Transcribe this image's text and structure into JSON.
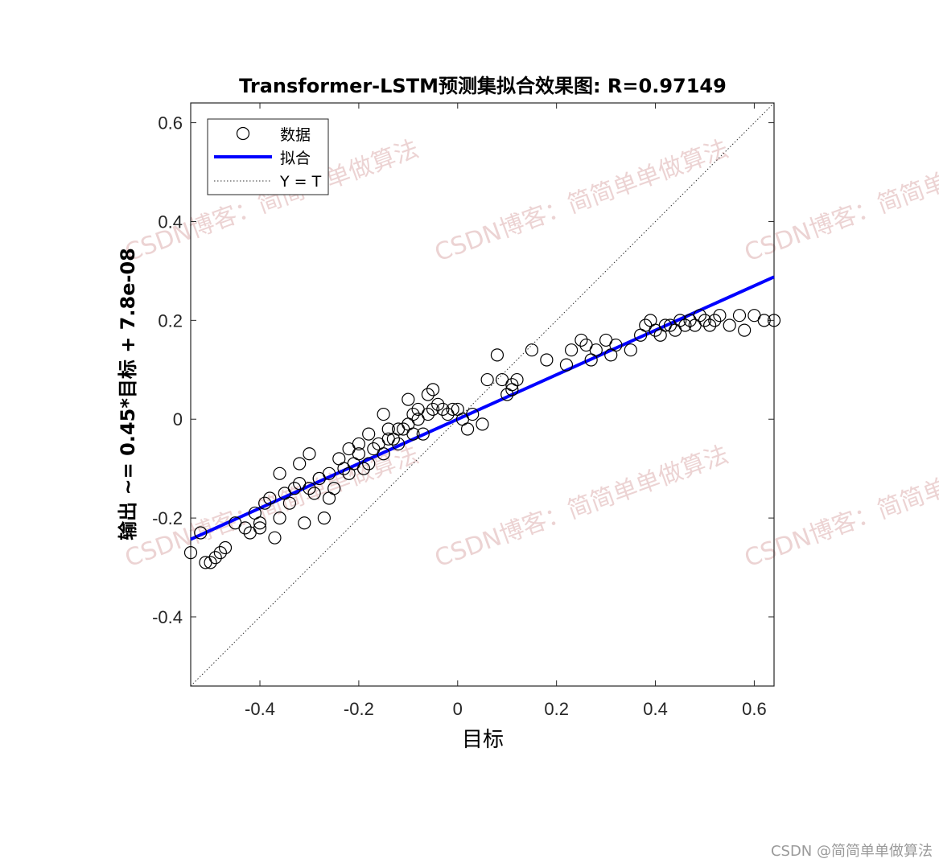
{
  "footer": "CSDN @简简单单做算法",
  "watermark": "CSDN博客：简简单单做算法",
  "chart_data": {
    "type": "scatter",
    "title": "Transformer-LSTM预测集拟合效果图: R=0.97149",
    "xlabel": "目标",
    "ylabel": "输出 ~= 0.45*目标 + 7.8e-08",
    "xlim": [
      -0.54,
      0.64
    ],
    "ylim": [
      -0.54,
      0.64
    ],
    "xticks": [
      -0.4,
      -0.2,
      0,
      0.2,
      0.4,
      0.6
    ],
    "yticks": [
      -0.4,
      -0.2,
      0,
      0.2,
      0.4,
      0.6
    ],
    "tick_labels": [
      "-0.4",
      "-0.2",
      "0",
      "0.2",
      "0.4",
      "0.6"
    ],
    "grid": false,
    "legend": {
      "position": "top-left",
      "entries": [
        "数据",
        "拟合",
        "Y = T"
      ]
    },
    "fit": {
      "slope": 0.45,
      "intercept": 7.8e-08,
      "color": "#0000ff"
    },
    "identity_line": {
      "color": "#333333"
    },
    "series": [
      {
        "name": "数据",
        "marker": "circle",
        "color": "#000000",
        "x": [
          -0.54,
          -0.52,
          -0.51,
          -0.5,
          -0.49,
          -0.48,
          -0.47,
          -0.45,
          -0.43,
          -0.42,
          -0.41,
          -0.4,
          -0.4,
          -0.39,
          -0.38,
          -0.37,
          -0.36,
          -0.35,
          -0.34,
          -0.33,
          -0.32,
          -0.31,
          -0.3,
          -0.29,
          -0.28,
          -0.27,
          -0.26,
          -0.25,
          -0.24,
          -0.23,
          -0.22,
          -0.21,
          -0.2,
          -0.19,
          -0.18,
          -0.17,
          -0.16,
          -0.15,
          -0.14,
          -0.13,
          -0.12,
          -0.11,
          -0.1,
          -0.09,
          -0.08,
          -0.07,
          -0.06,
          -0.05,
          -0.04,
          -0.03,
          -0.02,
          -0.01,
          0.0,
          0.01,
          0.02,
          0.03,
          0.05,
          0.06,
          0.08,
          0.1,
          0.11,
          0.12,
          0.15,
          0.18,
          0.22,
          0.23,
          0.25,
          0.26,
          0.27,
          0.28,
          0.3,
          0.31,
          0.32,
          0.35,
          0.37,
          0.38,
          0.39,
          0.4,
          0.41,
          0.42,
          0.43,
          0.44,
          0.45,
          0.46,
          0.47,
          0.48,
          0.49,
          0.5,
          0.51,
          0.52,
          0.53,
          0.55,
          0.57,
          0.58,
          0.6,
          0.62,
          0.64,
          -0.36,
          -0.32,
          -0.3,
          -0.2,
          -0.18,
          -0.15,
          -0.12,
          -0.1,
          -0.08,
          -0.06,
          -0.05,
          -0.22,
          -0.26,
          -0.28,
          -0.14,
          -0.09,
          0.09,
          0.11
        ],
        "y": [
          -0.27,
          -0.23,
          -0.29,
          -0.29,
          -0.28,
          -0.27,
          -0.26,
          -0.21,
          -0.22,
          -0.23,
          -0.19,
          -0.21,
          -0.22,
          -0.17,
          -0.16,
          -0.24,
          -0.2,
          -0.15,
          -0.17,
          -0.14,
          -0.13,
          -0.21,
          -0.14,
          -0.15,
          -0.12,
          -0.2,
          -0.16,
          -0.14,
          -0.08,
          -0.1,
          -0.11,
          -0.09,
          -0.07,
          -0.1,
          -0.09,
          -0.06,
          -0.05,
          -0.07,
          -0.02,
          -0.04,
          -0.05,
          -0.02,
          -0.01,
          -0.03,
          0.0,
          -0.03,
          0.01,
          0.02,
          0.03,
          0.02,
          0.01,
          0.02,
          0.02,
          0.0,
          -0.02,
          0.01,
          -0.01,
          0.08,
          0.13,
          0.05,
          0.07,
          0.08,
          0.14,
          0.12,
          0.11,
          0.14,
          0.16,
          0.15,
          0.12,
          0.14,
          0.16,
          0.13,
          0.15,
          0.14,
          0.17,
          0.19,
          0.2,
          0.18,
          0.17,
          0.19,
          0.19,
          0.18,
          0.2,
          0.19,
          0.2,
          0.19,
          0.21,
          0.2,
          0.19,
          0.2,
          0.21,
          0.19,
          0.21,
          0.18,
          0.21,
          0.2,
          0.2,
          -0.11,
          -0.09,
          -0.07,
          -0.05,
          -0.03,
          0.01,
          -0.02,
          0.04,
          0.02,
          0.05,
          0.06,
          -0.06,
          -0.11,
          -0.12,
          -0.04,
          0.01,
          0.08,
          0.06
        ]
      }
    ]
  }
}
